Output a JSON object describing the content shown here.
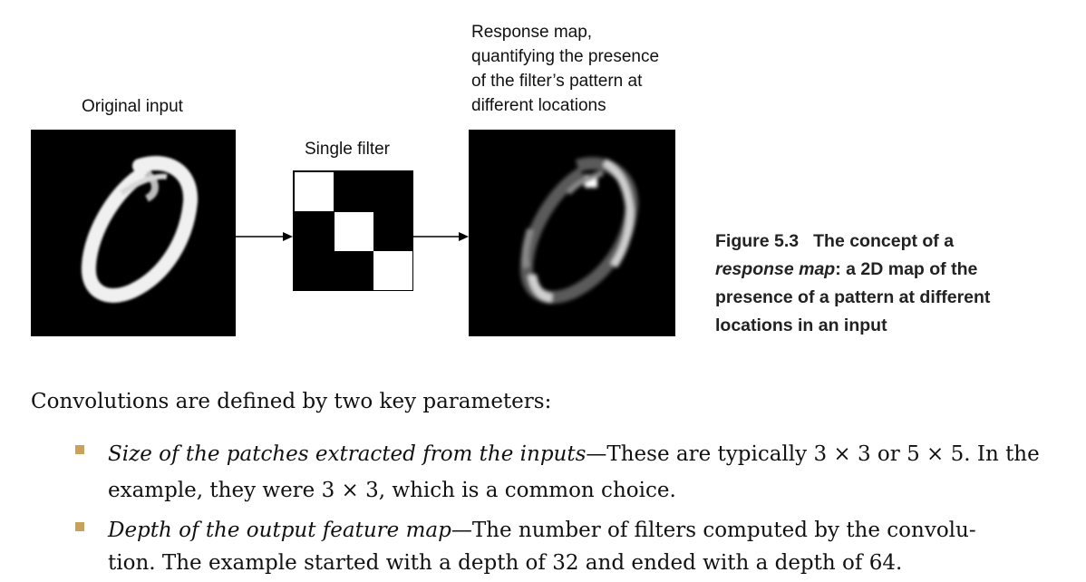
{
  "figure": {
    "original_label": "Original input",
    "filter_label": "Single filter",
    "response_label_lines": [
      "Response map,",
      "quantifying the presence",
      "of the filter’s pattern at",
      "different locations"
    ],
    "filter_pattern": [
      [
        1,
        0,
        0
      ],
      [
        0,
        1,
        0
      ],
      [
        0,
        0,
        1
      ]
    ],
    "caption": {
      "number": "Figure 5.3",
      "title_part1": "The concept of a",
      "term": "response map",
      "line1_rest": ": a 2D map of the",
      "line2": "presence of a pattern at different",
      "line3": "locations in an input"
    }
  },
  "body": {
    "intro": "Convolutions are defined by two key parameters:",
    "bullets": [
      {
        "term": "Size of the patches extracted from the inputs",
        "dash": "—",
        "line1_rest": "These are typically 3 × 3 or 5 × 5. In the",
        "line2": "example, they were 3 × 3, which is a common choice."
      },
      {
        "term": "Depth of the output feature map",
        "dash": "—",
        "line1_rest": "The number of filters computed by the convolu-",
        "line2": "tion. The example started with a depth of 32 and ended with a depth of 64."
      }
    ]
  },
  "colors": {
    "bullet": "#c9a25a",
    "image_background": "#000000"
  }
}
